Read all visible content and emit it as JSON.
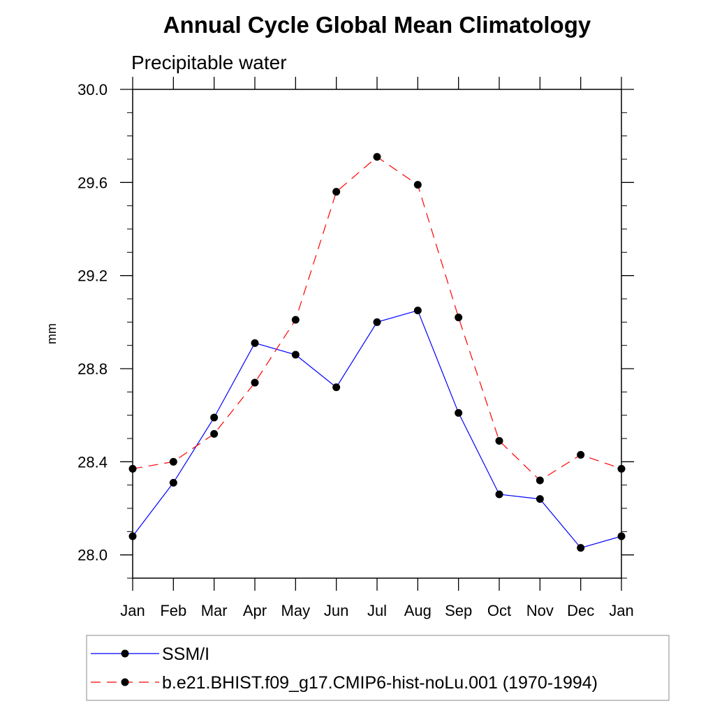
{
  "chart_data": {
    "type": "line",
    "title": "Annual Cycle Global Mean Climatology",
    "subtitle": "Precipitable water",
    "xlabel": "",
    "ylabel": "mm",
    "categories": [
      "Jan",
      "Feb",
      "Mar",
      "Apr",
      "May",
      "Jun",
      "Jul",
      "Aug",
      "Sep",
      "Oct",
      "Nov",
      "Dec",
      "Jan"
    ],
    "ylim": [
      27.9,
      30.0
    ],
    "y_ticks": [
      "28.0",
      "28.4",
      "28.8",
      "29.2",
      "29.6",
      "30.0"
    ],
    "grid": false,
    "legend_position": "bottom",
    "series": [
      {
        "name": "SSM/I",
        "color": "#0000ff",
        "line_style": "solid",
        "marker": "filled-circle",
        "values": [
          28.08,
          28.31,
          28.59,
          28.91,
          28.86,
          28.72,
          29.0,
          29.05,
          28.61,
          28.26,
          28.24,
          28.03,
          28.08
        ]
      },
      {
        "name": "b.e21.BHIST.f09_g17.CMIP6-hist-noLu.001 (1970-1994)",
        "color": "#ff0000",
        "line_style": "dashed",
        "marker": "filled-circle",
        "values": [
          28.37,
          28.4,
          28.52,
          28.74,
          29.01,
          29.56,
          29.71,
          29.59,
          29.02,
          28.49,
          28.32,
          28.43,
          28.37
        ]
      }
    ]
  }
}
